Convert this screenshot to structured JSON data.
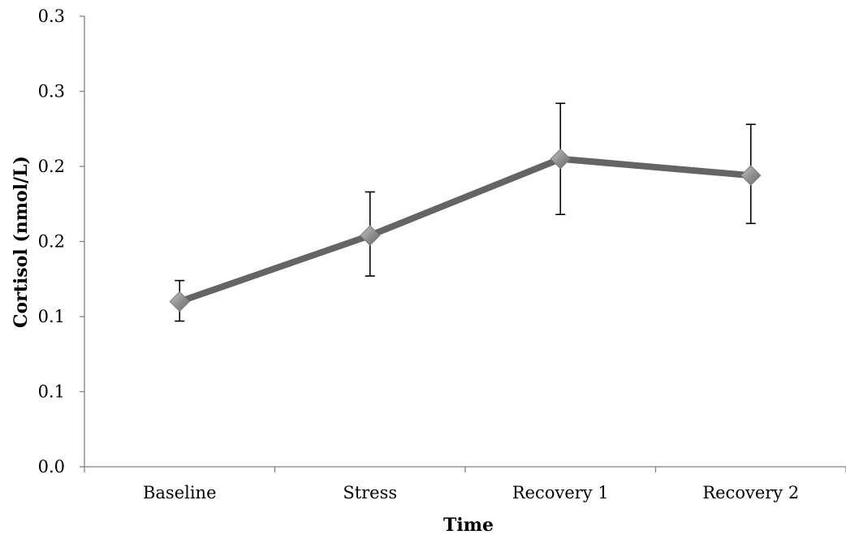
{
  "chart_data": {
    "type": "line",
    "title": "",
    "xlabel": "Time",
    "ylabel": "Cortisol (nmol/L)",
    "categories": [
      "Baseline",
      "Stress",
      "Recovery 1",
      "Recovery 2"
    ],
    "y_ticks": [
      {
        "value": 0.0,
        "label": "0.0"
      },
      {
        "value": 0.05,
        "label": "0.1"
      },
      {
        "value": 0.1,
        "label": "0.1"
      },
      {
        "value": 0.15,
        "label": "0.2"
      },
      {
        "value": 0.2,
        "label": "0.2"
      },
      {
        "value": 0.25,
        "label": "0.3"
      },
      {
        "value": 0.3,
        "label": "0.3"
      }
    ],
    "ylim": [
      0,
      0.3
    ],
    "grid": false,
    "legend": "none",
    "series": [
      {
        "values": [
          0.11,
          0.154,
          0.205,
          0.194
        ],
        "error_upper": [
          0.124,
          0.183,
          0.242,
          0.228
        ],
        "error_lower": [
          0.097,
          0.127,
          0.168,
          0.162
        ],
        "line_color": "#646464",
        "marker": "diamond",
        "marker_color": "#8c8c8c"
      }
    ]
  }
}
